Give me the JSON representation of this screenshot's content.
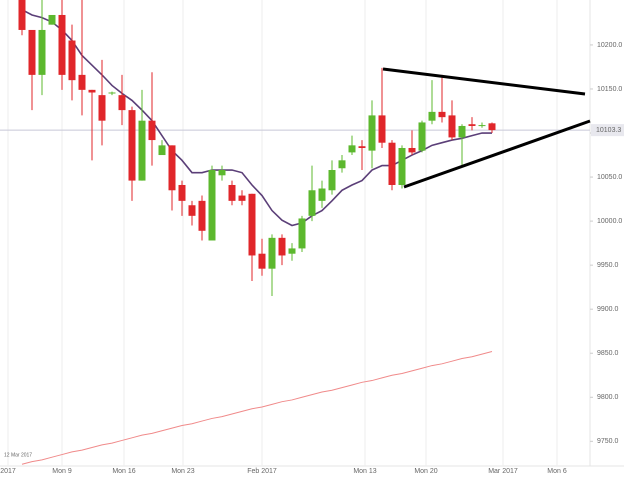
{
  "chart_data": {
    "type": "candlestick",
    "annotation": "12 Mar 2017",
    "up_color": "#5cb82e",
    "down_color": "#e0262a",
    "xlim": [
      -2.2,
      56.8
    ],
    "xticks": [
      {
        "value": -1.4,
        "label": "2017"
      },
      {
        "value": 4.0,
        "label": "Mon 9"
      },
      {
        "value": 10.2,
        "label": "Mon 16"
      },
      {
        "value": 16.1,
        "label": "Mon 23"
      },
      {
        "value": 24.0,
        "label": "Feb 2017"
      },
      {
        "value": 34.3,
        "label": "Mon 13"
      },
      {
        "value": 40.4,
        "label": "Mon 20"
      },
      {
        "value": 48.1,
        "label": "Mar 2017"
      },
      {
        "value": 53.5,
        "label": "Mon 6"
      }
    ],
    "ylim": [
      9722,
      10251
    ],
    "yticks": [
      {
        "value": 9750,
        "label": "9750.0"
      },
      {
        "value": 9800,
        "label": "9800.0"
      },
      {
        "value": 9850,
        "label": "9850.0"
      },
      {
        "value": 9900,
        "label": "9900.0"
      },
      {
        "value": 9950,
        "label": "9950.0"
      },
      {
        "value": 10000,
        "label": "10000.0"
      },
      {
        "value": 10050,
        "label": "10050.0"
      },
      {
        "value": 10100,
        "label": "10100.0"
      },
      {
        "value": 10150,
        "label": "10150.0"
      },
      {
        "value": 10200,
        "label": "10200.0"
      }
    ],
    "last_price": {
      "value": 10103.3,
      "label": "10103.3"
    },
    "candles": [
      {
        "open": 10251,
        "high": 10251,
        "low": 10211,
        "close": 10217
      },
      {
        "open": 10217,
        "high": 10217,
        "low": 10126,
        "close": 10166
      },
      {
        "open": 10166,
        "high": 10251,
        "low": 10143,
        "close": 10217
      },
      {
        "open": 10223,
        "high": 10234,
        "low": 10223,
        "close": 10234
      },
      {
        "open": 10234,
        "high": 10251,
        "low": 10149,
        "close": 10166
      },
      {
        "open": 10205,
        "high": 10223,
        "low": 10137,
        "close": 10160
      },
      {
        "open": 10166,
        "high": 10251,
        "low": 10120,
        "close": 10149
      },
      {
        "open": 10149,
        "high": 10149,
        "low": 10069,
        "close": 10146
      },
      {
        "open": 10143,
        "high": 10183,
        "low": 10086,
        "close": 10114
      },
      {
        "open": 10145,
        "high": 10147,
        "low": 10143,
        "close": 10146
      },
      {
        "open": 10143,
        "high": 10166,
        "low": 10109,
        "close": 10126
      },
      {
        "open": 10126,
        "high": 10130,
        "low": 10023,
        "close": 10046
      },
      {
        "open": 10046,
        "high": 10149,
        "low": 10046,
        "close": 10114
      },
      {
        "open": 10114,
        "high": 10169,
        "low": 10063,
        "close": 10092
      },
      {
        "open": 10075,
        "high": 10092,
        "low": 10075,
        "close": 10086
      },
      {
        "open": 10086,
        "high": 10086,
        "low": 10012,
        "close": 10035
      },
      {
        "open": 10041,
        "high": 10046,
        "low": 10006,
        "close": 10023
      },
      {
        "open": 10018,
        "high": 10023,
        "low": 9995,
        "close": 10006
      },
      {
        "open": 10023,
        "high": 10029,
        "low": 9978,
        "close": 9989
      },
      {
        "open": 9978,
        "high": 10063,
        "low": 9978,
        "close": 10058
      },
      {
        "open": 10052,
        "high": 10063,
        "low": 10046,
        "close": 10058
      },
      {
        "open": 10041,
        "high": 10046,
        "low": 10018,
        "close": 10023
      },
      {
        "open": 10029,
        "high": 10035,
        "low": 10018,
        "close": 10023
      },
      {
        "open": 10031,
        "high": 10031,
        "low": 9932,
        "close": 9961
      },
      {
        "open": 9963,
        "high": 9980,
        "low": 9938,
        "close": 9946
      },
      {
        "open": 9946,
        "high": 9985,
        "low": 9915,
        "close": 9981
      },
      {
        "open": 9981,
        "high": 9985,
        "low": 9950,
        "close": 9961
      },
      {
        "open": 9963,
        "high": 9975,
        "low": 9955,
        "close": 9969
      },
      {
        "open": 9969,
        "high": 10006,
        "low": 9965,
        "close": 10003
      },
      {
        "open": 10006,
        "high": 10063,
        "low": 10000,
        "close": 10035
      },
      {
        "open": 10023,
        "high": 10046,
        "low": 10015,
        "close": 10037
      },
      {
        "open": 10035,
        "high": 10069,
        "low": 10030,
        "close": 10058
      },
      {
        "open": 10060,
        "high": 10075,
        "low": 10055,
        "close": 10069
      },
      {
        "open": 10078,
        "high": 10097,
        "low": 10075,
        "close": 10086
      },
      {
        "open": 10085,
        "high": 10092,
        "low": 10058,
        "close": 10083
      },
      {
        "open": 10080,
        "high": 10137,
        "low": 10060,
        "close": 10120
      },
      {
        "open": 10120,
        "high": 10174,
        "low": 10083,
        "close": 10089
      },
      {
        "open": 10089,
        "high": 10092,
        "low": 10035,
        "close": 10041
      },
      {
        "open": 10041,
        "high": 10086,
        "low": 10037,
        "close": 10083
      },
      {
        "open": 10083,
        "high": 10103,
        "low": 10075,
        "close": 10078
      },
      {
        "open": 10080,
        "high": 10114,
        "low": 10078,
        "close": 10112
      },
      {
        "open": 10114,
        "high": 10160,
        "low": 10110,
        "close": 10124
      },
      {
        "open": 10124,
        "high": 10166,
        "low": 10112,
        "close": 10118
      },
      {
        "open": 10120,
        "high": 10137,
        "low": 10092,
        "close": 10095
      },
      {
        "open": 10095,
        "high": 10110,
        "low": 10063,
        "close": 10108
      },
      {
        "open": 10110,
        "high": 10118,
        "low": 10103,
        "close": 10108
      },
      {
        "open": 10108,
        "high": 10112,
        "low": 10106,
        "close": 10109
      },
      {
        "open": 10111,
        "high": 10112,
        "low": 10100,
        "close": 10103.3
      }
    ],
    "moving_averages": [
      {
        "color": "#5b3f78",
        "values": [
          10240,
          10234,
          10231,
          10226,
          10217,
          10205,
          10188,
          10177,
          10166,
          10154,
          10145,
          10137,
          10126,
          10114,
          10097,
          10080,
          10069,
          10055,
          10055,
          10058,
          10058,
          10058,
          10055,
          10041,
          10029,
          10012,
          10001,
          9995,
          9998,
          10006,
          10012,
          10023,
          10035,
          10041,
          10046,
          10058,
          10063,
          10063,
          10069,
          10075,
          10080,
          10086,
          10089,
          10092,
          10094,
          10097,
          10100,
          10100
        ]
      },
      {
        "color": "#f08a8a",
        "values": [
          9724,
          9727,
          9729,
          9732,
          9735,
          9738,
          9740,
          9743,
          9746,
          9748,
          9751,
          9754,
          9757,
          9759,
          9762,
          9765,
          9768,
          9770,
          9773,
          9776,
          9778,
          9781,
          9784,
          9787,
          9789,
          9792,
          9795,
          9797,
          9800,
          9803,
          9806,
          9808,
          9811,
          9814,
          9817,
          9819,
          9822,
          9825,
          9827,
          9830,
          9833,
          9836,
          9838,
          9841,
          9844,
          9846,
          9849,
          9852
        ]
      }
    ]
  }
}
